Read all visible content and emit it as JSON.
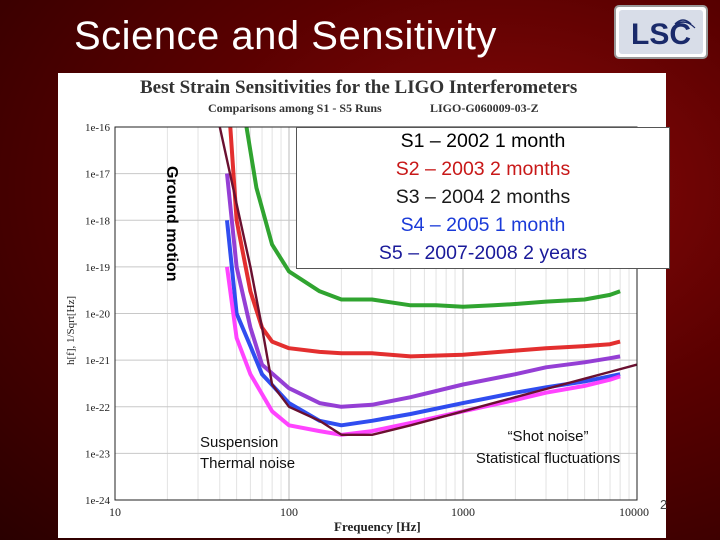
{
  "slide": {
    "title": "Science and Sensitivity",
    "logo_text": "LSC",
    "page_number": "2"
  },
  "colors": {
    "background": "#6a0505",
    "s1": "#1a9a1a",
    "s2": "#e01818",
    "s3": "#8a2ad0",
    "s4": "#1a3aee",
    "s5": "#ff30ff",
    "design": "#6a1030"
  },
  "annotations": {
    "ground_motion": "Ground motion",
    "suspension_line1": "Suspension",
    "suspension_line2": "Thermal noise",
    "shot_line1": "“Shot noise”",
    "shot_line2": "Statistical fluctuations"
  },
  "runs_legend": [
    {
      "text": "S1 – 2002 1 month",
      "color": "#000000"
    },
    {
      "text": "S2 – 2003 2 months",
      "color": "#c81818"
    },
    {
      "text": "S3 – 2004 2 months",
      "color": "#1a1a1a"
    },
    {
      "text": "S4 – 2005 1 month",
      "color": "#1a3ad8"
    },
    {
      "text": "S5 – 2007-2008 2 years",
      "color": "#1a1a9a"
    }
  ],
  "chart_data": {
    "type": "line",
    "title": "Best Strain Sensitivities for the LIGO Interferometers",
    "subtitle": "Comparisons among S1 - S5 Runs",
    "document_id": "LIGO-G060009-03-Z",
    "xlabel": "Frequency [Hz]",
    "ylabel": "h[f], 1/Sqrt[Hz]",
    "xscale": "log",
    "yscale": "log",
    "xlim": [
      40,
      10000
    ],
    "ylim": [
      1e-24,
      1e-16
    ],
    "xticks": [
      {
        "value": 10,
        "label": "10"
      },
      {
        "value": 100,
        "label": "100"
      },
      {
        "value": 1000,
        "label": "1000"
      },
      {
        "value": 10000,
        "label": "10000"
      }
    ],
    "yticks": [
      {
        "value": 1e-16,
        "label": "1e-16"
      },
      {
        "value": 1e-17,
        "label": "1e-17"
      },
      {
        "value": 1e-18,
        "label": "1e-18"
      },
      {
        "value": 1e-19,
        "label": "1e-19"
      },
      {
        "value": 1e-20,
        "label": "1e-20"
      },
      {
        "value": 1e-21,
        "label": "1e-21"
      },
      {
        "value": 1e-22,
        "label": "1e-22"
      },
      {
        "value": 1e-23,
        "label": "1e-23"
      },
      {
        "value": 1e-24,
        "label": "1e-24"
      }
    ],
    "grid": true,
    "series": [
      {
        "name": "S1",
        "color": "#1a9a1a",
        "points": [
          [
            57,
            1e-16
          ],
          [
            65,
            5e-18
          ],
          [
            80,
            3e-19
          ],
          [
            100,
            8e-20
          ],
          [
            150,
            3e-20
          ],
          [
            200,
            2e-20
          ],
          [
            300,
            2e-20
          ],
          [
            500,
            1.5e-20
          ],
          [
            700,
            1.5e-20
          ],
          [
            1000,
            1.4e-20
          ],
          [
            1500,
            1.5e-20
          ],
          [
            2000,
            1.6e-20
          ],
          [
            3000,
            1.8e-20
          ],
          [
            5000,
            2e-20
          ],
          [
            7000,
            2.5e-20
          ],
          [
            8000,
            3e-20
          ]
        ]
      },
      {
        "name": "S2",
        "color": "#e01818",
        "points": [
          [
            46,
            1e-16
          ],
          [
            50,
            1e-18
          ],
          [
            60,
            3e-20
          ],
          [
            70,
            5e-21
          ],
          [
            80,
            2.5e-21
          ],
          [
            100,
            1.8e-21
          ],
          [
            150,
            1.5e-21
          ],
          [
            200,
            1.4e-21
          ],
          [
            300,
            1.4e-21
          ],
          [
            500,
            1.2e-21
          ],
          [
            1000,
            1.3e-21
          ],
          [
            2000,
            1.6e-21
          ],
          [
            3000,
            1.8e-21
          ],
          [
            5000,
            2e-21
          ],
          [
            7000,
            2.2e-21
          ],
          [
            8000,
            2.5e-21
          ]
        ]
      },
      {
        "name": "S3",
        "color": "#8a2ad0",
        "points": [
          [
            44,
            1e-17
          ],
          [
            50,
            1e-19
          ],
          [
            60,
            5e-21
          ],
          [
            70,
            8e-22
          ],
          [
            100,
            2.5e-22
          ],
          [
            150,
            1.2e-22
          ],
          [
            200,
            1e-22
          ],
          [
            300,
            1.1e-22
          ],
          [
            500,
            1.6e-22
          ],
          [
            1000,
            3e-22
          ],
          [
            2000,
            5e-22
          ],
          [
            3000,
            7e-22
          ],
          [
            5000,
            9e-22
          ],
          [
            7000,
            1.1e-21
          ],
          [
            8000,
            1.2e-21
          ]
        ]
      },
      {
        "name": "S4",
        "color": "#1a3aee",
        "points": [
          [
            44,
            1e-18
          ],
          [
            50,
            1e-20
          ],
          [
            60,
            2e-21
          ],
          [
            70,
            5e-22
          ],
          [
            100,
            1.2e-22
          ],
          [
            150,
            5e-23
          ],
          [
            200,
            4e-23
          ],
          [
            300,
            5e-23
          ],
          [
            500,
            7e-23
          ],
          [
            1000,
            1.2e-22
          ],
          [
            2000,
            2e-22
          ],
          [
            3000,
            2.6e-22
          ],
          [
            5000,
            3.5e-22
          ],
          [
            7000,
            4.5e-22
          ],
          [
            8000,
            5e-22
          ]
        ]
      },
      {
        "name": "S5",
        "color": "#ff30ff",
        "points": [
          [
            44,
            1e-19
          ],
          [
            50,
            3e-21
          ],
          [
            60,
            5e-22
          ],
          [
            80,
            8e-23
          ],
          [
            100,
            4e-23
          ],
          [
            150,
            3e-23
          ],
          [
            200,
            2.5e-23
          ],
          [
            300,
            3e-23
          ],
          [
            500,
            4.5e-23
          ],
          [
            1000,
            8e-23
          ],
          [
            2000,
            1.4e-22
          ],
          [
            3000,
            2e-22
          ],
          [
            5000,
            2.8e-22
          ],
          [
            7000,
            3.8e-22
          ],
          [
            8000,
            4.5e-22
          ]
        ]
      },
      {
        "color": "#6a1030",
        "points": [
          [
            40,
            1e-16
          ],
          [
            60,
            1e-19
          ],
          [
            70,
            5e-21
          ],
          [
            80,
            3e-22
          ],
          [
            100,
            1e-22
          ],
          [
            150,
            5e-23
          ],
          [
            200,
            2.5e-23
          ],
          [
            300,
            2.5e-23
          ],
          [
            500,
            4e-23
          ],
          [
            1000,
            8e-23
          ],
          [
            2000,
            1.6e-22
          ],
          [
            3000,
            2.4e-22
          ],
          [
            5000,
            4e-22
          ],
          [
            7000,
            5.6e-22
          ],
          [
            10000,
            8e-22
          ]
        ]
      }
    ]
  }
}
